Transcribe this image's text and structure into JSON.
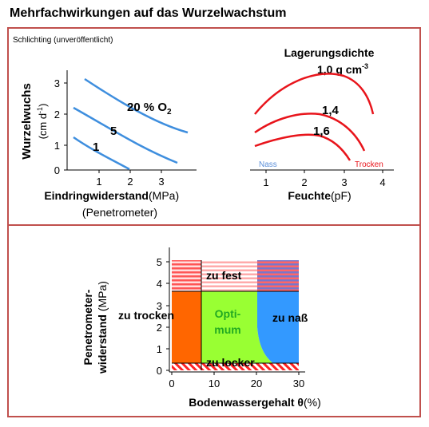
{
  "title": "Mehrfachwirkungen auf das Wurzelwachstum",
  "top_panel": {
    "source_note": "Schlichting (unveröffentlicht)",
    "left_plot": {
      "ylabel_main": "Wurzelwuchs",
      "ylabel_unit": "(cm d",
      "ylabel_exp": "-1",
      "ylabel_close": ")",
      "xlabel_main": "Eindringwiderstand",
      "xlabel_unit": " (MPa)",
      "xlabel_sub": "(Penetrometer)",
      "y_ticks": [
        "0",
        "1",
        "2",
        "3"
      ],
      "x_ticks": [
        "1",
        "2",
        "3"
      ],
      "curve_labels": {
        "c1": "1",
        "c5": "5",
        "c20_prefix": "20 % O",
        "c20_sub": "2"
      },
      "line_color": "#3e8ede"
    },
    "right_plot": {
      "heading": "Lagerungsdichte",
      "heading_value": "1,0 g cm",
      "heading_exp": "-3",
      "curve_labels": [
        "1,4",
        "1,6"
      ],
      "nass": "Nass",
      "trocken": "Trocken",
      "xlabel_main": "Feuchte",
      "xlabel_unit": " (pF)",
      "x_ticks": [
        "1",
        "2",
        "3",
        "4"
      ],
      "line_color": "#e8141b",
      "nass_color": "#5b8fd9"
    }
  },
  "bottom_panel": {
    "ylabel_line1": "Penetrometer-",
    "ylabel_line2": "widerstand",
    "ylabel_unit": " (MPa)",
    "xlabel_main": "Bodenwassergehalt",
    "xlabel_theta": " θ",
    "xlabel_unit": " (%)",
    "y_ticks": [
      "0",
      "1",
      "2",
      "3",
      "4",
      "5"
    ],
    "x_ticks": [
      "0",
      "10",
      "20",
      "30"
    ],
    "regions": {
      "zu_trocken": "zu trocken",
      "optimum_1": "Opti-",
      "optimum_2": "mum",
      "zu_nass": "zu naß",
      "zu_fest": "zu fest",
      "zu_locker": "zu locker"
    },
    "colors": {
      "dry": "#ff6600",
      "optimum": "#99ff33",
      "wet": "#3399ff",
      "hatch_red": "#ff2222",
      "hatch_blue": "#6666dd",
      "optimum_text": "#22aa22"
    }
  },
  "colors": {
    "frame": "#c0504d"
  }
}
